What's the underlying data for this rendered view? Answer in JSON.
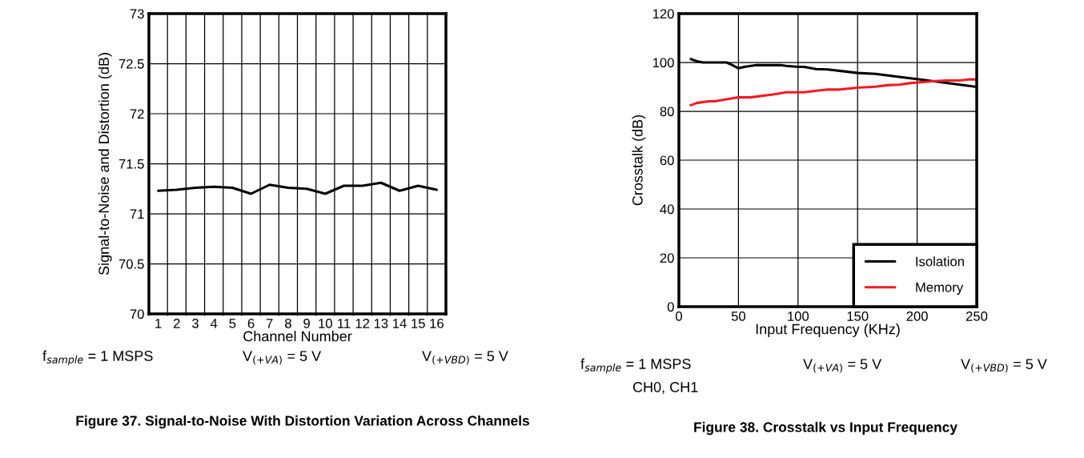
{
  "chart_data": [
    {
      "type": "line",
      "title": "Figure 37. Signal-to-Noise With Distortion Variation Across Channels",
      "xlabel": "Channel Number",
      "ylabel": "Signal-to-Noise and Distortion (dB)",
      "categories": [
        "1",
        "2",
        "3",
        "4",
        "5",
        "6",
        "7",
        "8",
        "9",
        "10",
        "11",
        "12",
        "13",
        "14",
        "15",
        "16"
      ],
      "series": [
        {
          "color": "#000000",
          "values": [
            71.23,
            71.24,
            71.26,
            71.27,
            71.26,
            71.2,
            71.29,
            71.26,
            71.25,
            71.2,
            71.28,
            71.28,
            71.31,
            71.23,
            71.28,
            71.24
          ]
        }
      ],
      "ylim": [
        70,
        73
      ],
      "yticks": [
        70,
        70.5,
        71,
        71.5,
        72,
        72.5,
        73
      ],
      "grid": true,
      "legend": false,
      "marker": "none",
      "line_style": "solid",
      "annotations": [
        "f$_{sample}$ = 1 MSPS",
        "V$_{(+VA)}$ = 5 V",
        "V$_{(+VBD)}$ = 5 V"
      ]
    },
    {
      "type": "line",
      "title": "Figure 38. Crosstalk vs Input Frequency",
      "xlabel": "Input Frequency (KHz)",
      "ylabel": "Crosstalk (dB)",
      "series": [
        {
          "name": "Isolation",
          "color": "#000000",
          "x": [
            10,
            15,
            20,
            40,
            45,
            50,
            55,
            65,
            85,
            90,
            100,
            105,
            115,
            125,
            150,
            165,
            190,
            200,
            250
          ],
          "values": [
            101.4,
            100.5,
            100,
            100,
            98.9,
            97.6,
            98.2,
            98.9,
            98.9,
            98.6,
            98.2,
            98.2,
            97.3,
            97.1,
            95.7,
            95.3,
            93.8,
            93.2,
            90.0
          ]
        },
        {
          "name": "Memory",
          "color": "#ee1c25",
          "x": [
            10,
            15,
            25,
            30,
            50,
            60,
            80,
            90,
            105,
            110,
            125,
            135,
            150,
            165,
            175,
            185,
            195,
            205,
            215,
            225,
            235,
            245,
            250
          ],
          "values": [
            82.5,
            83.4,
            84.1,
            84.1,
            85.7,
            85.7,
            87,
            87.8,
            87.8,
            88.1,
            88.9,
            88.9,
            89.7,
            90.1,
            90.7,
            90.9,
            91.6,
            92,
            92.4,
            92.6,
            92.6,
            93.1,
            93
          ]
        }
      ],
      "xlim": [
        0,
        250
      ],
      "xticks": [
        0,
        50,
        100,
        150,
        200,
        250
      ],
      "ylim": [
        0,
        120
      ],
      "yticks": [
        0,
        20,
        40,
        60,
        80,
        100,
        120
      ],
      "grid": true,
      "legend": "bottom right",
      "marker": "none",
      "line_style": "solid",
      "annotations": [
        "f$_{sample}$ = 1 MSPS",
        "V$_{(+VA)}$ = 5 V",
        "V$_{(+VBD)}$ = 5 V",
        "CH0, CH1"
      ]
    }
  ]
}
